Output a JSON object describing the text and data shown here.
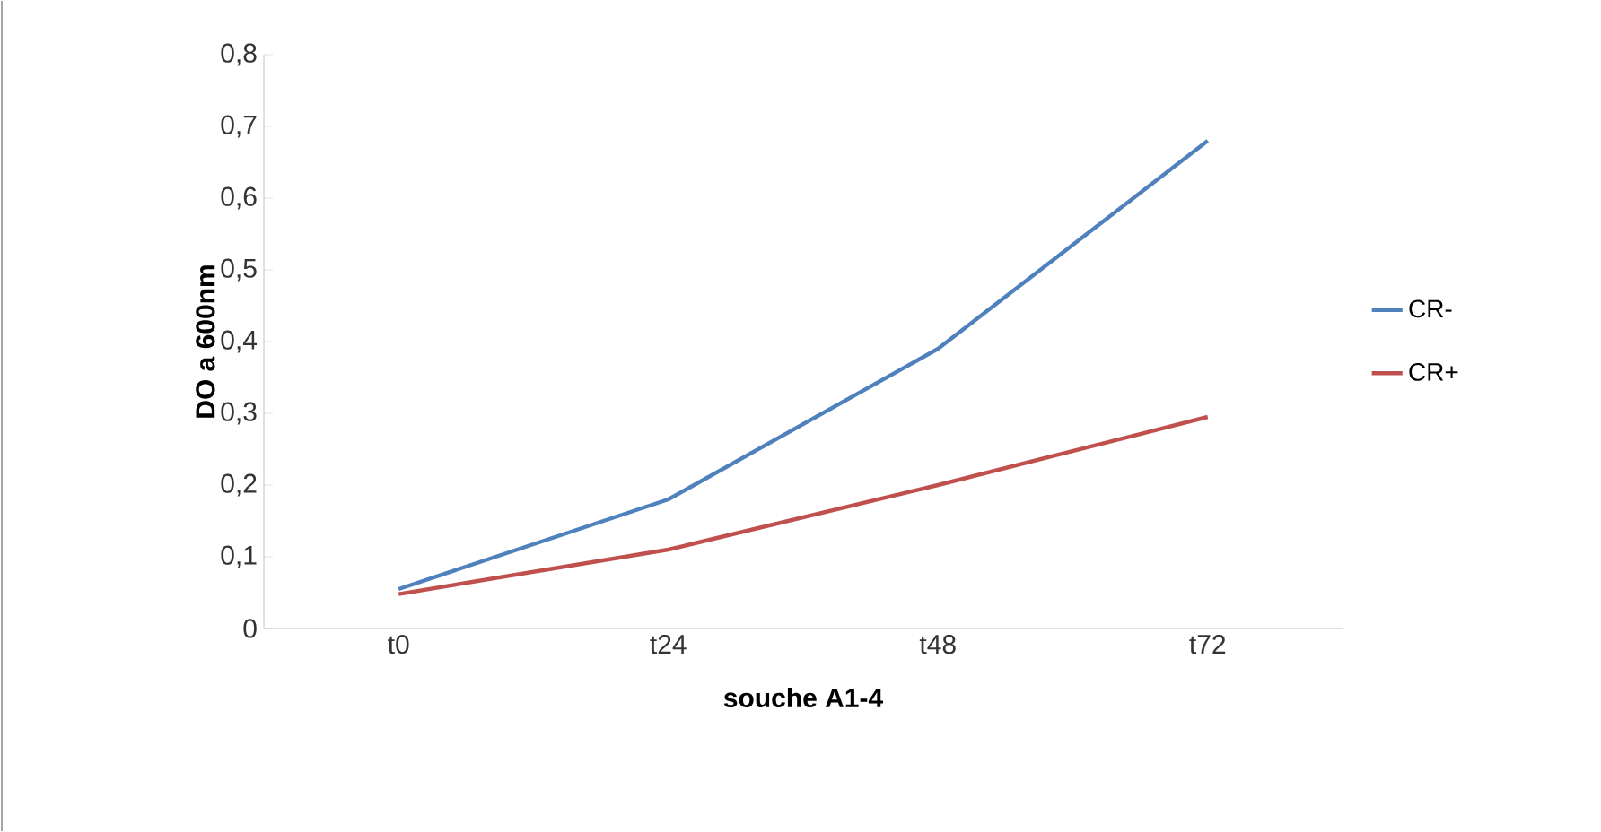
{
  "chart_data": {
    "type": "line",
    "xlabel": "souche A1-4",
    "ylabel": "DO a 600nm",
    "categories": [
      "t0",
      "t24",
      "t48",
      "t72"
    ],
    "series": [
      {
        "name": "CR-",
        "color": "#4f81bd",
        "values": [
          0.055,
          0.18,
          0.39,
          0.68
        ]
      },
      {
        "name": "CR+",
        "color": "#c0504d",
        "values": [
          0.048,
          0.11,
          0.2,
          0.295
        ]
      }
    ],
    "ylim": [
      0,
      0.8
    ],
    "yticks": [
      {
        "value": 0,
        "label": "0"
      },
      {
        "value": 0.1,
        "label": "0,1"
      },
      {
        "value": 0.2,
        "label": "0,2"
      },
      {
        "value": 0.3,
        "label": "0,3"
      },
      {
        "value": 0.4,
        "label": "0,4"
      },
      {
        "value": 0.5,
        "label": "0,5"
      },
      {
        "value": 0.6,
        "label": "0,6"
      },
      {
        "value": 0.7,
        "label": "0,7"
      },
      {
        "value": 0.8,
        "label": "0,8"
      }
    ],
    "grid": false,
    "legend": "right",
    "marker": "none",
    "line_style": "solid"
  }
}
